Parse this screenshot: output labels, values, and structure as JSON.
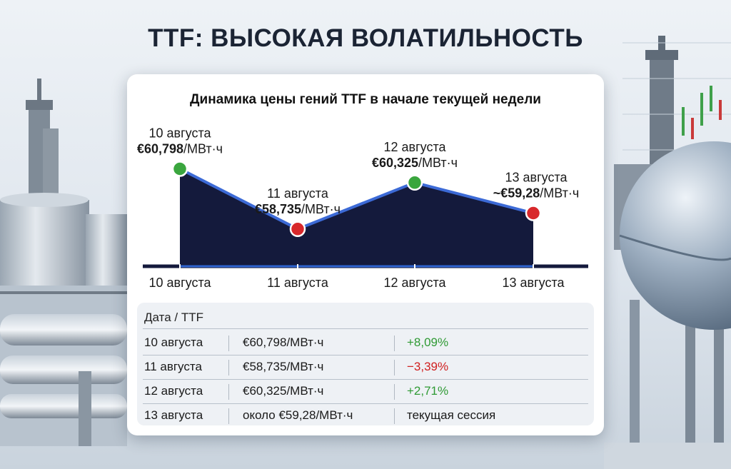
{
  "headline": "TTF: ВЫСОКАЯ ВОЛАТИЛЬНОСТЬ",
  "colors": {
    "area": "#141a3c",
    "line": "#3c6ad6",
    "up": "#3aa63e",
    "down": "#d8282b",
    "pos_text": "#2f9a34",
    "neg_text": "#d02020"
  },
  "chart_data": {
    "type": "area",
    "title": "Динамика цены гений TTF в начале текущей недели",
    "categories": [
      "10 августа",
      "11 августа",
      "12 августа",
      "13 августа"
    ],
    "values": [
      60.798,
      58.735,
      60.325,
      59.28
    ],
    "units": "€/МВт·ч",
    "point_labels": [
      {
        "date": "10 августа",
        "value": "€60,798",
        "unit": "/МВт·ч",
        "marker": "up"
      },
      {
        "date": "11 августа",
        "value": "€58,735",
        "unit": "/МВт·ч",
        "marker": "down"
      },
      {
        "date": "12 августа",
        "value": "€60,325",
        "unit": "/МВт·ч",
        "marker": "up"
      },
      {
        "date": "13 августа",
        "value": "~€59,28",
        "unit": "/МВт·ч",
        "marker": "down"
      }
    ],
    "ylim": [
      57.8,
      61.3
    ],
    "grid": false,
    "legend": "none"
  },
  "table": {
    "header": "Дата / TTF",
    "rows": [
      {
        "date": "10 августа",
        "price": "€60,798/МВт·ч",
        "change": "+8,09%",
        "trend": "up"
      },
      {
        "date": "11 августа",
        "price": "€58,735/МВт·ч",
        "change": "−3,39%",
        "trend": "down"
      },
      {
        "date": "12 августа",
        "price": "€60,325/МВт·ч",
        "change": "+2,71%",
        "trend": "up"
      },
      {
        "date": "13 августа",
        "price": "около €59,28/МВт·ч",
        "change": "текущая сессия",
        "trend": "none"
      }
    ]
  }
}
